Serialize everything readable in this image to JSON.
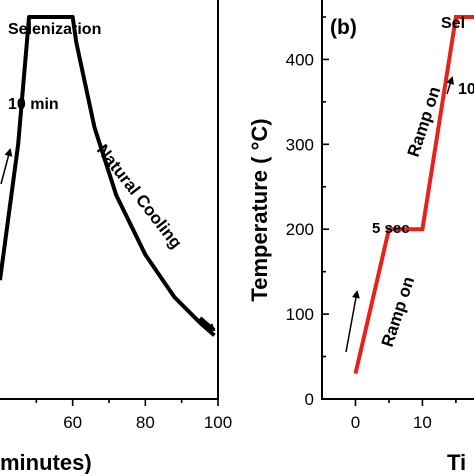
{
  "chart_data": [
    {
      "panel": "a",
      "type": "line",
      "xlabel": "minutes)",
      "x_ticks": [
        "60",
        "80",
        "100"
      ],
      "xlim": [
        40,
        100
      ],
      "ylim": [
        0,
        470
      ],
      "series": [
        {
          "color": "#000000",
          "points": [
            [
              40,
              140
            ],
            [
              45,
              300
            ],
            [
              48,
              450
            ],
            [
              60,
              450
            ],
            [
              61,
              420
            ],
            [
              66,
              320
            ],
            [
              72,
              240
            ],
            [
              80,
              170
            ],
            [
              88,
              120
            ],
            [
              95,
              90
            ],
            [
              99,
              75
            ]
          ]
        }
      ],
      "annotations": [
        {
          "text": "Selenization",
          "x": 54,
          "y": 455
        },
        {
          "text": "10 min",
          "x": 52,
          "y": 315
        },
        {
          "text": "Natural Cooling",
          "x": 82,
          "y": 240
        }
      ]
    },
    {
      "panel": "b",
      "label": "(b)",
      "type": "line",
      "ylabel": "Temperature ( °C)",
      "xlabel": "Ti",
      "x_ticks": [
        "0",
        "10"
      ],
      "y_ticks": [
        "0",
        "100",
        "200",
        "300",
        "400"
      ],
      "xlim": [
        -5,
        18
      ],
      "ylim": [
        0,
        470
      ],
      "series": [
        {
          "color": "#e8211c",
          "points": [
            [
              0,
              30
            ],
            [
              5,
              200
            ],
            [
              10,
              200
            ],
            [
              15,
              450
            ],
            [
              18,
              450
            ]
          ]
        }
      ],
      "annotations": [
        {
          "text": "5 sec",
          "x": 3,
          "y": 205
        },
        {
          "text": "Ramp on",
          "x": 5,
          "y": 130
        },
        {
          "text": "Ramp on",
          "x": 11,
          "y": 330
        },
        {
          "text": "Sel",
          "x": 14,
          "y": 455
        },
        {
          "text": "10",
          "x": 16,
          "y": 395
        }
      ]
    }
  ]
}
